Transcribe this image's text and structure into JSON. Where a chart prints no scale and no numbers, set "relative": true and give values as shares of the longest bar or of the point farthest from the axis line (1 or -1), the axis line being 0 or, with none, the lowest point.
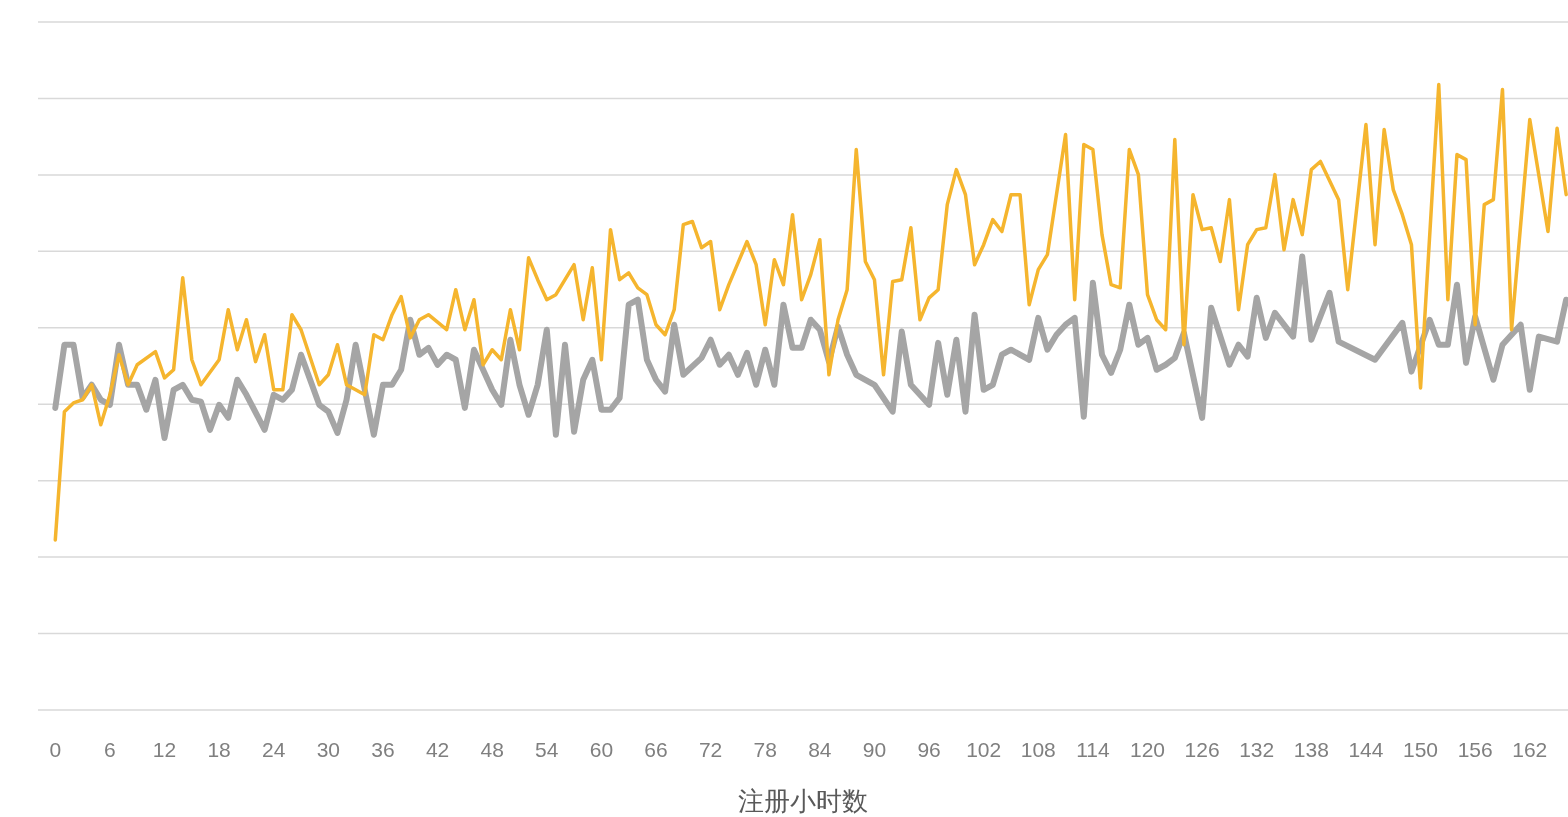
{
  "chart_data": {
    "type": "line",
    "relative": true,
    "xlabel": "注册小时数",
    "xlim": [
      -1.9,
      166.2
    ],
    "xticks": [
      0,
      6,
      12,
      18,
      24,
      30,
      36,
      42,
      48,
      54,
      60,
      66,
      72,
      78,
      84,
      90,
      96,
      102,
      108,
      114,
      120,
      126,
      132,
      138,
      144,
      150,
      156,
      162
    ],
    "grid": "y",
    "tick_labels": "x",
    "marker": "none",
    "line_style": "solid",
    "series": [
      {
        "color": "#a5a5a5",
        "x": [
          0,
          1,
          2,
          3,
          4,
          5,
          6,
          7,
          8,
          9,
          10,
          11,
          12,
          13,
          14,
          15,
          16,
          17,
          18,
          19,
          20,
          21,
          23,
          24,
          25,
          26,
          27,
          29,
          30,
          31,
          32,
          33,
          34,
          35,
          36,
          37,
          38,
          39,
          40,
          41,
          42,
          43,
          44,
          45,
          46,
          47,
          48,
          49,
          50,
          51,
          52,
          53,
          54,
          55,
          56,
          57,
          58,
          59,
          60,
          61,
          62,
          63,
          64,
          65,
          66,
          67,
          68,
          69,
          71,
          72,
          73,
          74,
          75,
          76,
          77,
          78,
          79,
          80,
          81,
          82,
          83,
          84,
          85,
          86,
          87,
          88,
          90,
          92,
          93,
          94,
          96,
          97,
          98,
          99,
          100,
          101,
          102,
          103,
          104,
          105,
          107,
          108,
          109,
          110,
          111,
          112,
          113,
          114,
          115,
          116,
          117,
          118,
          119,
          120,
          121,
          122,
          123,
          124,
          126,
          127,
          129,
          130,
          131,
          132,
          133,
          134,
          136,
          137,
          138,
          140,
          141,
          145,
          148,
          149,
          151,
          152,
          153,
          154,
          155,
          156,
          158,
          159,
          161,
          162,
          163,
          165,
          166
        ],
        "values": [
          0.483,
          0.584,
          0.584,
          0.499,
          0.52,
          0.496,
          0.488,
          0.584,
          0.52,
          0.52,
          0.48,
          0.528,
          0.435,
          0.512,
          0.52,
          0.496,
          0.493,
          0.448,
          0.488,
          0.467,
          0.528,
          0.504,
          0.448,
          0.504,
          0.496,
          0.512,
          0.568,
          0.488,
          0.477,
          0.443,
          0.496,
          0.584,
          0.512,
          0.44,
          0.52,
          0.52,
          0.544,
          0.624,
          0.568,
          0.579,
          0.552,
          0.568,
          0.56,
          0.483,
          0.576,
          0.544,
          0.512,
          0.488,
          0.592,
          0.52,
          0.472,
          0.52,
          0.608,
          0.44,
          0.584,
          0.445,
          0.528,
          0.56,
          0.48,
          0.48,
          0.499,
          0.648,
          0.656,
          0.56,
          0.528,
          0.509,
          0.616,
          0.536,
          0.563,
          0.592,
          0.552,
          0.568,
          0.536,
          0.571,
          0.52,
          0.576,
          0.52,
          0.648,
          0.579,
          0.579,
          0.624,
          0.608,
          0.557,
          0.613,
          0.568,
          0.536,
          0.52,
          0.477,
          0.605,
          0.52,
          0.488,
          0.587,
          0.504,
          0.592,
          0.477,
          0.632,
          0.512,
          0.52,
          0.568,
          0.576,
          0.56,
          0.627,
          0.576,
          0.6,
          0.616,
          0.627,
          0.469,
          0.683,
          0.568,
          0.539,
          0.576,
          0.648,
          0.584,
          0.595,
          0.544,
          0.552,
          0.563,
          0.603,
          0.467,
          0.643,
          0.552,
          0.584,
          0.565,
          0.659,
          0.595,
          0.635,
          0.597,
          0.725,
          0.592,
          0.667,
          0.589,
          0.56,
          0.619,
          0.541,
          0.624,
          0.584,
          0.584,
          0.68,
          0.555,
          0.629,
          0.528,
          0.584,
          0.616,
          0.512,
          0.597,
          0.589,
          0.656
        ]
      },
      {
        "color": "#f5b52e",
        "x": [
          0,
          1,
          2,
          3,
          4,
          5,
          6,
          7,
          8,
          9,
          11,
          12,
          13,
          14,
          15,
          16,
          18,
          19,
          20,
          21,
          22,
          23,
          24,
          25,
          26,
          27,
          29,
          30,
          31,
          32,
          34,
          35,
          36,
          37,
          38,
          39,
          40,
          41,
          43,
          44,
          45,
          46,
          47,
          48,
          49,
          50,
          51,
          52,
          53,
          54,
          55,
          56,
          57,
          58,
          59,
          60,
          61,
          62,
          63,
          64,
          65,
          66,
          67,
          68,
          69,
          70,
          71,
          72,
          73,
          74,
          76,
          77,
          78,
          79,
          80,
          81,
          82,
          83,
          84,
          85,
          86,
          87,
          88,
          89,
          90,
          91,
          92,
          93,
          94,
          95,
          96,
          97,
          98,
          99,
          100,
          101,
          102,
          103,
          104,
          105,
          106,
          107,
          108,
          109,
          111,
          112,
          113,
          114,
          115,
          116,
          117,
          118,
          119,
          120,
          121,
          122,
          123,
          124,
          125,
          126,
          127,
          128,
          129,
          130,
          131,
          132,
          133,
          134,
          135,
          136,
          137,
          138,
          139,
          141,
          142,
          144,
          145,
          146,
          147,
          148,
          149,
          150,
          152,
          153,
          154,
          155,
          156,
          157,
          158,
          159,
          160,
          162,
          164,
          165,
          166
        ],
        "values": [
          0.272,
          0.477,
          0.491,
          0.496,
          0.52,
          0.456,
          0.504,
          0.568,
          0.52,
          0.552,
          0.573,
          0.531,
          0.544,
          0.691,
          0.56,
          0.52,
          0.56,
          0.64,
          0.576,
          0.624,
          0.557,
          0.6,
          0.512,
          0.512,
          0.632,
          0.608,
          0.52,
          0.536,
          0.584,
          0.52,
          0.504,
          0.6,
          0.592,
          0.632,
          0.661,
          0.595,
          0.624,
          0.632,
          0.608,
          0.672,
          0.608,
          0.656,
          0.552,
          0.576,
          0.56,
          0.64,
          0.576,
          0.723,
          0.688,
          0.656,
          0.664,
          0.688,
          0.712,
          0.624,
          0.707,
          0.56,
          0.768,
          0.688,
          0.699,
          0.675,
          0.664,
          0.616,
          0.6,
          0.64,
          0.776,
          0.781,
          0.739,
          0.749,
          0.64,
          0.68,
          0.749,
          0.712,
          0.616,
          0.72,
          0.68,
          0.792,
          0.656,
          0.696,
          0.752,
          0.536,
          0.624,
          0.672,
          0.896,
          0.717,
          0.688,
          0.536,
          0.685,
          0.688,
          0.771,
          0.624,
          0.659,
          0.672,
          0.808,
          0.864,
          0.824,
          0.712,
          0.744,
          0.784,
          0.765,
          0.824,
          0.824,
          0.648,
          0.704,
          0.728,
          0.92,
          0.656,
          0.904,
          0.896,
          0.76,
          0.68,
          0.675,
          0.896,
          0.856,
          0.664,
          0.624,
          0.608,
          0.912,
          0.584,
          0.824,
          0.768,
          0.771,
          0.717,
          0.816,
          0.64,
          0.744,
          0.768,
          0.771,
          0.856,
          0.736,
          0.816,
          0.76,
          0.864,
          0.877,
          0.816,
          0.672,
          0.936,
          0.744,
          0.928,
          0.832,
          0.792,
          0.744,
          0.515,
          1.0,
          0.656,
          0.888,
          0.88,
          0.616,
          0.808,
          0.816,
          0.992,
          0.608,
          0.944,
          0.765,
          0.93,
          0.824
        ]
      }
    ]
  }
}
